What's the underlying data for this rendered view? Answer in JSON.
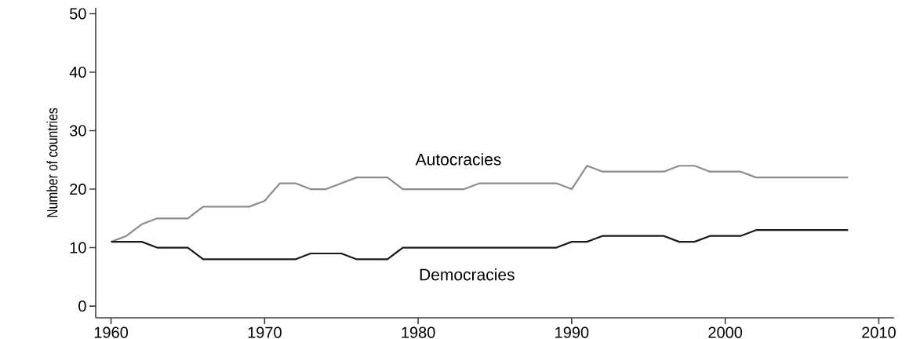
{
  "chart_data": {
    "type": "line",
    "ylabel": "Number of countries",
    "x": [
      1960,
      1961,
      1962,
      1963,
      1964,
      1965,
      1966,
      1967,
      1968,
      1969,
      1970,
      1971,
      1972,
      1973,
      1974,
      1975,
      1976,
      1977,
      1978,
      1979,
      1980,
      1981,
      1982,
      1983,
      1984,
      1985,
      1986,
      1987,
      1988,
      1989,
      1990,
      1991,
      1992,
      1993,
      1994,
      1995,
      1996,
      1997,
      1998,
      1999,
      2000,
      2001,
      2002,
      2003,
      2004,
      2005,
      2006,
      2007,
      2008
    ],
    "series": [
      {
        "name": "Autocracies",
        "color": "#8c8c8c",
        "values": [
          11,
          12,
          14,
          15,
          15,
          15,
          17,
          17,
          17,
          17,
          18,
          21,
          21,
          20,
          20,
          21,
          22,
          22,
          22,
          20,
          20,
          20,
          20,
          20,
          21,
          21,
          21,
          21,
          21,
          21,
          20,
          24,
          23,
          23,
          23,
          23,
          23,
          24,
          24,
          23,
          23,
          23,
          22,
          22,
          22,
          22,
          22,
          22,
          22
        ]
      },
      {
        "name": "Democracies",
        "color": "#1a1a1a",
        "values": [
          11,
          11,
          11,
          10,
          10,
          10,
          8,
          8,
          8,
          8,
          8,
          8,
          8,
          9,
          9,
          9,
          8,
          8,
          8,
          10,
          10,
          10,
          10,
          10,
          10,
          10,
          10,
          10,
          10,
          10,
          11,
          11,
          12,
          12,
          12,
          12,
          12,
          11,
          11,
          12,
          12,
          12,
          13,
          13,
          13,
          13,
          13,
          13,
          13
        ]
      }
    ],
    "xlim": [
      1959,
      2011
    ],
    "ylim": [
      -2,
      51
    ],
    "xticks": [
      1960,
      1970,
      1980,
      1990,
      2000,
      2010
    ],
    "yticks": [
      0,
      10,
      20,
      30,
      40,
      50
    ],
    "grid": false,
    "legend": false,
    "marker": "none",
    "line_style": "solid"
  }
}
